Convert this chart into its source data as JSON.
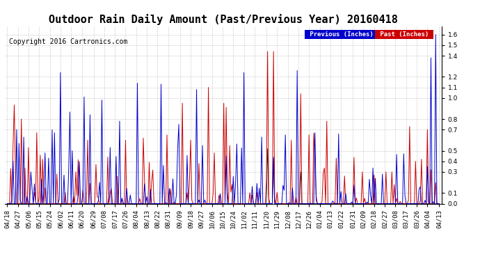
{
  "title": "Outdoor Rain Daily Amount (Past/Previous Year) 20160418",
  "copyright": "Copyright 2016 Cartronics.com",
  "legend_labels": [
    "Previous (Inches)",
    "Past (Inches)"
  ],
  "legend_bg_colors": [
    "#0000cc",
    "#cc0000"
  ],
  "yticks": [
    0.0,
    0.1,
    0.3,
    0.4,
    0.5,
    0.7,
    0.8,
    1.0,
    1.1,
    1.2,
    1.4,
    1.5,
    1.6
  ],
  "ylim": [
    0.0,
    1.68
  ],
  "background_color": "#ffffff",
  "grid_color": "#999999",
  "title_fontsize": 11,
  "tick_fontsize": 6.5,
  "copyright_fontsize": 7,
  "n_days": 366,
  "date_labels": [
    "04/18",
    "04/27",
    "05/06",
    "05/15",
    "05/24",
    "06/02",
    "06/11",
    "06/20",
    "06/29",
    "07/08",
    "07/17",
    "07/26",
    "08/04",
    "08/13",
    "08/22",
    "08/31",
    "09/09",
    "09/18",
    "09/27",
    "10/06",
    "10/15",
    "10/24",
    "11/02",
    "11/11",
    "11/20",
    "11/29",
    "12/08",
    "12/17",
    "12/26",
    "01/04",
    "01/13",
    "01/22",
    "01/31",
    "02/09",
    "02/18",
    "02/27",
    "03/08",
    "03/17",
    "03/26",
    "04/04",
    "04/13"
  ],
  "line_color_previous": "#0000cc",
  "line_color_past": "#cc0000",
  "line_color_black": "#000000",
  "seed": 42
}
